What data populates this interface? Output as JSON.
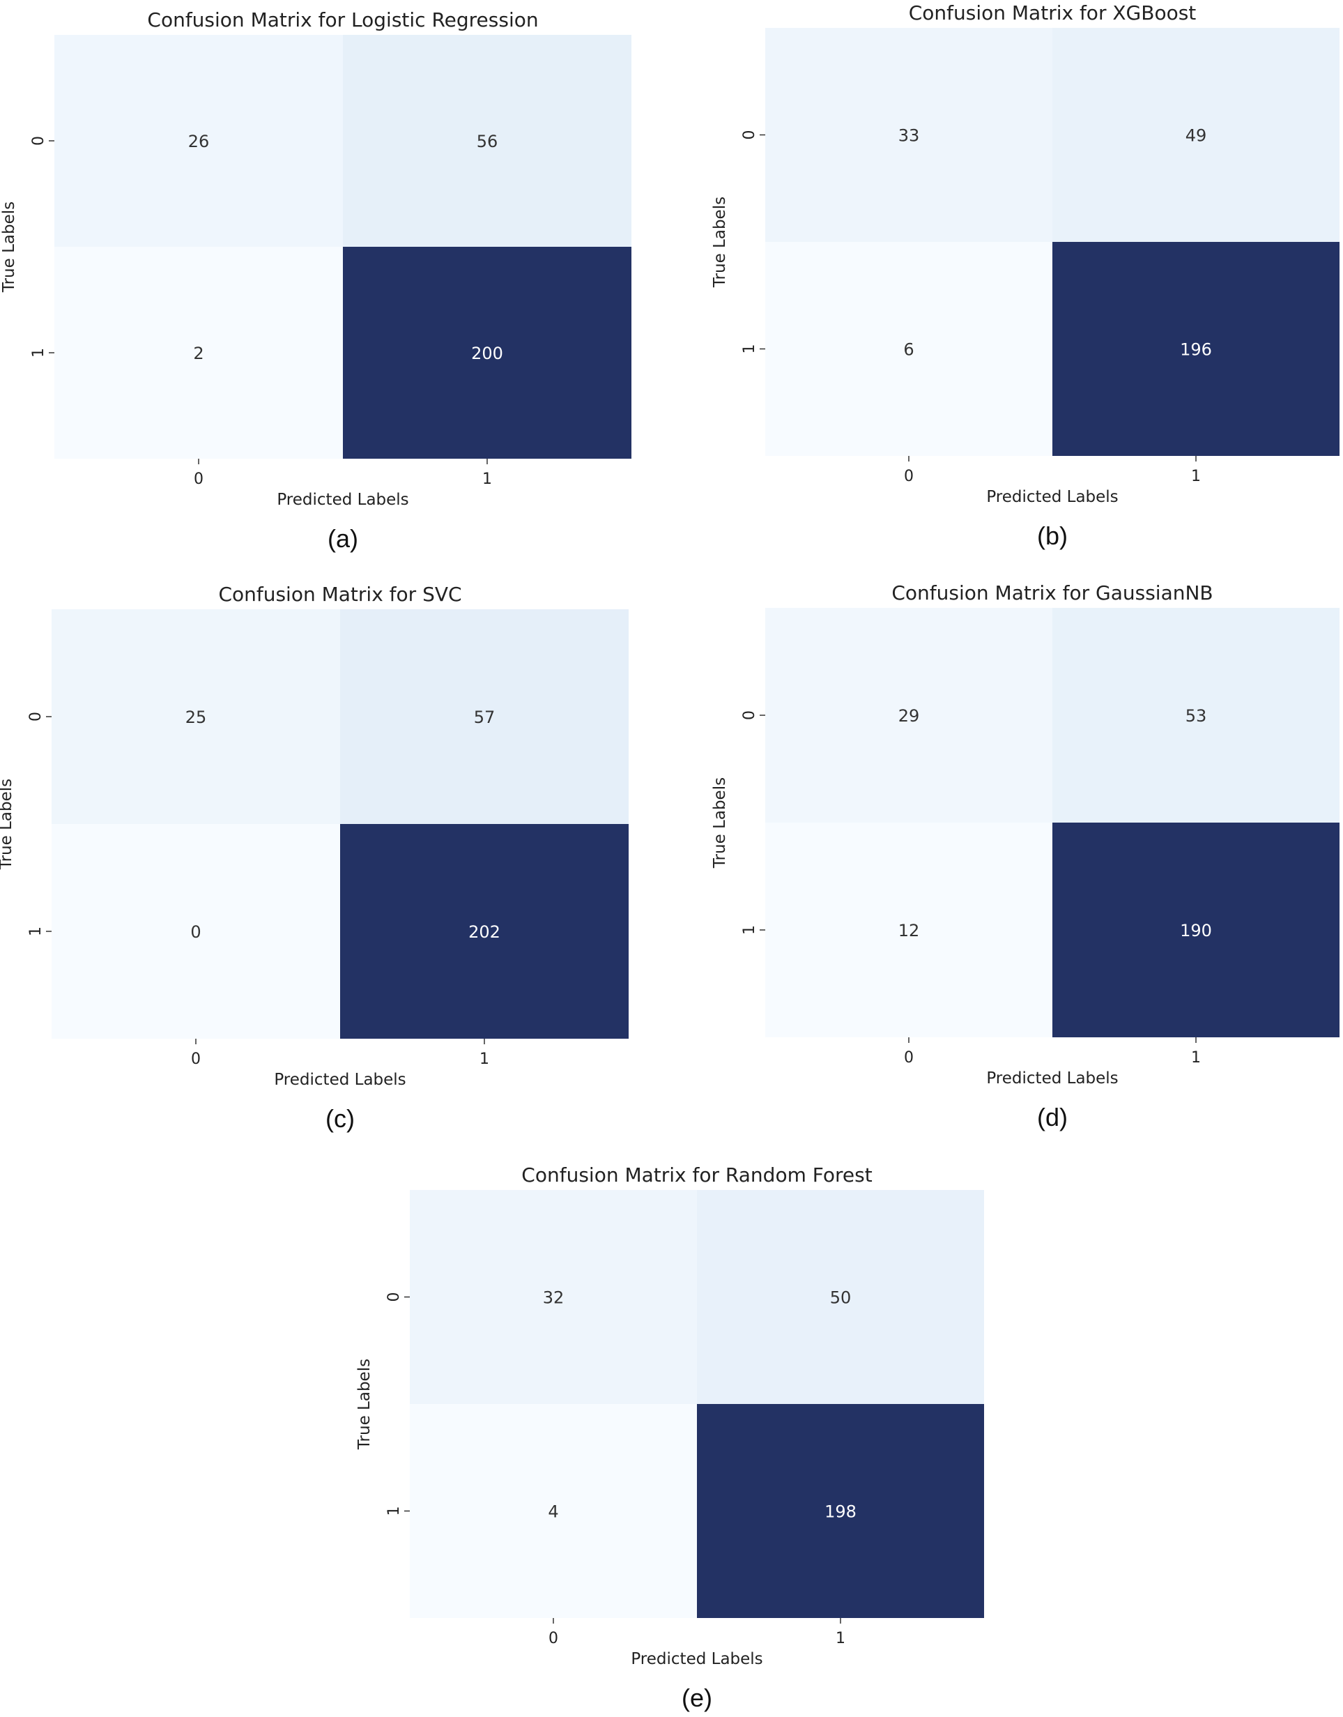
{
  "chart_data": [
    {
      "type": "heatmap",
      "title": "Confusion Matrix for Logistic Regression",
      "xlabel": "Predicted Labels",
      "ylabel": "True Labels",
      "x_ticks": [
        "0",
        "1"
      ],
      "y_ticks": [
        "0",
        "1"
      ],
      "values": [
        [
          26,
          56
        ],
        [
          2,
          200
        ]
      ],
      "colormap": "Blues",
      "caption": "(a)"
    },
    {
      "type": "heatmap",
      "title": "Confusion Matrix for XGBoost",
      "xlabel": "Predicted Labels",
      "ylabel": "True Labels",
      "x_ticks": [
        "0",
        "1"
      ],
      "y_ticks": [
        "0",
        "1"
      ],
      "values": [
        [
          33,
          49
        ],
        [
          6,
          196
        ]
      ],
      "colormap": "Blues",
      "caption": "(b)"
    },
    {
      "type": "heatmap",
      "title": "Confusion Matrix for SVC",
      "xlabel": "Predicted Labels",
      "ylabel": "True Labels",
      "x_ticks": [
        "0",
        "1"
      ],
      "y_ticks": [
        "0",
        "1"
      ],
      "values": [
        [
          25,
          57
        ],
        [
          0,
          202
        ]
      ],
      "colormap": "Blues",
      "caption": "(c)"
    },
    {
      "type": "heatmap",
      "title": "Confusion Matrix for GaussianNB",
      "xlabel": "Predicted Labels",
      "ylabel": "True Labels",
      "x_ticks": [
        "0",
        "1"
      ],
      "y_ticks": [
        "0",
        "1"
      ],
      "values": [
        [
          29,
          53
        ],
        [
          12,
          190
        ]
      ],
      "colormap": "Blues",
      "caption": "(d)"
    },
    {
      "type": "heatmap",
      "title": "Confusion Matrix for Random Forest",
      "xlabel": "Predicted Labels",
      "ylabel": "True Labels",
      "x_ticks": [
        "0",
        "1"
      ],
      "y_ticks": [
        "0",
        "1"
      ],
      "values": [
        [
          32,
          50
        ],
        [
          4,
          198
        ]
      ],
      "colormap": "Blues",
      "caption": "(e)"
    }
  ],
  "colors": {
    "low": "#f7fbff",
    "high": "#233264",
    "text_dark": "#333333",
    "text_light": "#ffffff"
  }
}
